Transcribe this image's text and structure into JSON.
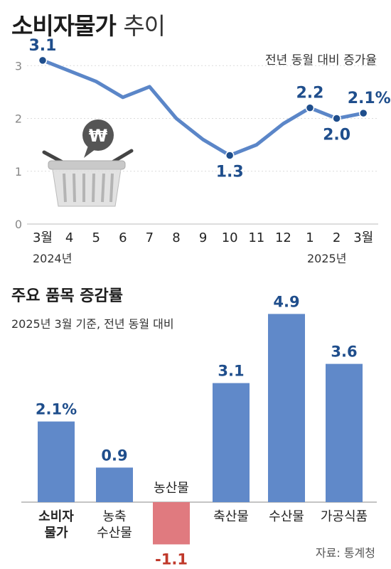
{
  "chart_data": [
    {
      "type": "line",
      "title": "소비자물가",
      "title_suffix": "추이",
      "unit_note": "전년 동월 대비 증가율",
      "x": [
        "3월",
        "4",
        "5",
        "6",
        "7",
        "8",
        "9",
        "10",
        "11",
        "12",
        "1",
        "2",
        "3월"
      ],
      "year_labels": [
        {
          "index": 0,
          "text": "2024년"
        },
        {
          "index": 10,
          "text": "2025년"
        }
      ],
      "series": [
        {
          "values": [
            3.1,
            2.9,
            2.7,
            2.4,
            2.6,
            2.0,
            1.6,
            1.3,
            1.5,
            1.9,
            2.2,
            2.0,
            2.1
          ]
        }
      ],
      "data_labels": [
        {
          "index": 0,
          "text": "3.1",
          "pos": "above"
        },
        {
          "index": 7,
          "text": "1.3",
          "pos": "below"
        },
        {
          "index": 10,
          "text": "2.2",
          "pos": "above"
        },
        {
          "index": 11,
          "text": "2.0",
          "pos": "below"
        },
        {
          "index": 12,
          "text": "2.1%",
          "pos": "above"
        }
      ],
      "y_ticks": [
        0,
        1,
        2,
        3
      ],
      "ylim": [
        0,
        3.3
      ],
      "line_color": "#5b86c8",
      "label_color": "#1f4e8c"
    },
    {
      "type": "bar",
      "title": "주요 품목 증감률",
      "subtitle": "2025년 3월 기준, 전년 동월 대비",
      "categories": [
        "소비자\n물가",
        "농축\n수산물",
        "농산물",
        "축산물",
        "수산물",
        "가공식품"
      ],
      "values": [
        2.1,
        0.9,
        -1.1,
        3.1,
        4.9,
        3.6
      ],
      "value_labels": [
        "2.1%",
        "0.9",
        "-1.1",
        "3.1",
        "4.9",
        "3.6"
      ],
      "bold_category_index": 0,
      "positive_color": "#6089c9",
      "negative_color": "#e07a7f",
      "positive_label_color": "#1f4e8c",
      "negative_label_color": "#c0392b"
    }
  ],
  "basket_icon": "basket-won-icon",
  "source": "자료: 통계청"
}
